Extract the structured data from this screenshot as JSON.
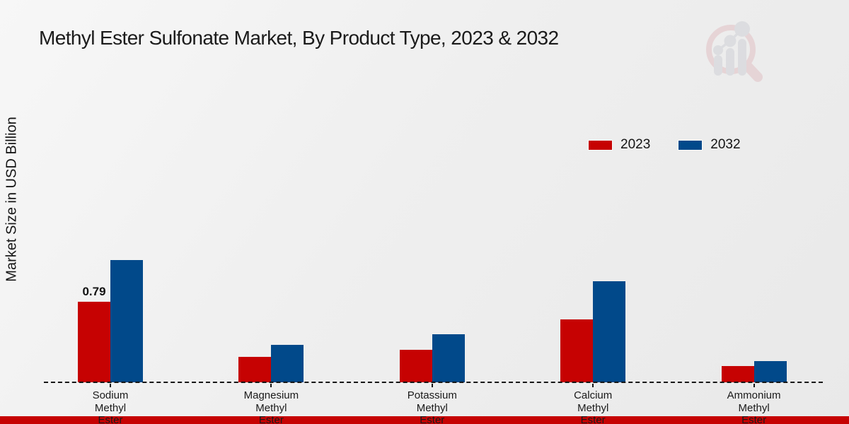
{
  "title": "Methyl Ester Sulfonate Market, By Product Type, 2023 & 2032",
  "y_axis_label": "Market Size in USD Billion",
  "legend": {
    "items": [
      {
        "label": "2023",
        "color": "#C60202"
      },
      {
        "label": "2032",
        "color": "#01498A"
      }
    ]
  },
  "colors": {
    "series_2023": "#C60202",
    "series_2032": "#01498A",
    "footer_band": "#C60202",
    "baseline": "#161616"
  },
  "watermark_icon": "magnifier-bar-chart-logo-icon",
  "chart_data": {
    "type": "bar",
    "title": "Methyl Ester Sulfonate Market, By Product Type, 2023 & 2032",
    "xlabel": "",
    "ylabel": "Market Size in USD Billion",
    "categories": [
      "Sodium Methyl Ester",
      "Magnesium Methyl Ester",
      "Potassium Methyl Ester",
      "Calcium Methyl Ester",
      "Ammonium Methyl Ester"
    ],
    "category_lines": [
      [
        "Sodium",
        "Methyl",
        "Ester"
      ],
      [
        "Magnesium",
        "Methyl",
        "Ester"
      ],
      [
        "Potassium",
        "Methyl",
        "Ester"
      ],
      [
        "Calcium",
        "Methyl",
        "Ester"
      ],
      [
        "Ammonium",
        "Methyl",
        "Ester"
      ]
    ],
    "series": [
      {
        "name": "2023",
        "color": "#C60202",
        "values": [
          0.79,
          0.25,
          0.32,
          0.62,
          0.16
        ]
      },
      {
        "name": "2032",
        "color": "#01498A",
        "values": [
          1.2,
          0.37,
          0.47,
          0.99,
          0.21
        ]
      }
    ],
    "annotations": [
      {
        "series": "2023",
        "category_index": 0,
        "text": "0.79"
      }
    ],
    "ylim": [
      0,
      1.4
    ],
    "grid": false,
    "baseline_style": "dashed",
    "legend_position": "upper-right"
  }
}
